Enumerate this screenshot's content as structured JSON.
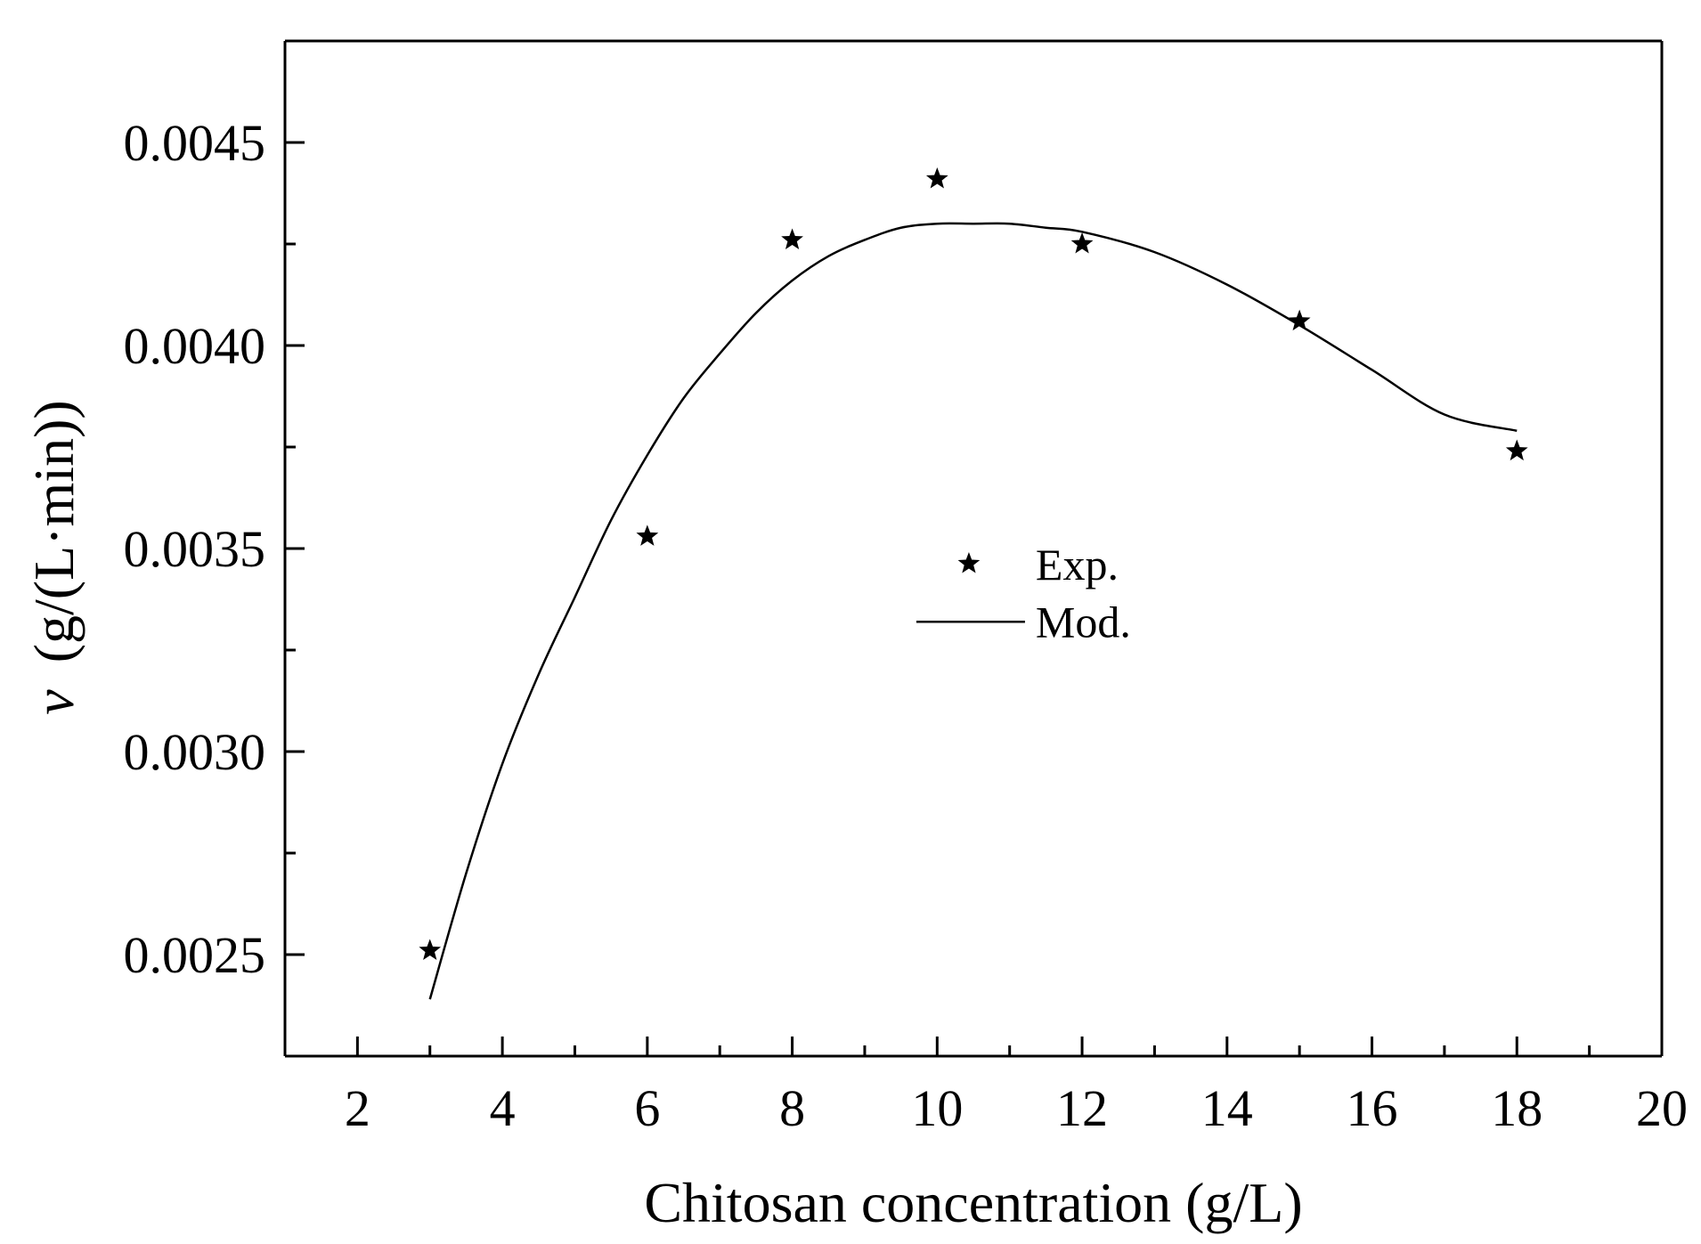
{
  "chart_data": {
    "type": "scatter",
    "xlabel": "Chitosan concentration (g/L)",
    "ylabel": {
      "symbol": "v",
      "unit": "(g/(L·min))"
    },
    "xlim": [
      1,
      20
    ],
    "ylim": [
      0.00225,
      0.00475
    ],
    "x_ticks": [
      2,
      4,
      6,
      8,
      10,
      12,
      14,
      16,
      18,
      20
    ],
    "x_tick_labels": [
      "2",
      "4",
      "6",
      "8",
      "10",
      "12",
      "14",
      "16",
      "18",
      "20"
    ],
    "x_minor_ticks": [
      3,
      5,
      7,
      9,
      11,
      13,
      15,
      17,
      19
    ],
    "y_ticks": [
      0.0025,
      0.003,
      0.0035,
      0.004,
      0.0045
    ],
    "y_tick_labels": [
      "0.0025",
      "0.0030",
      "0.0035",
      "0.0040",
      "0.0045"
    ],
    "y_minor_ticks": [
      0.00275,
      0.00325,
      0.00375,
      0.00425
    ],
    "grid": false,
    "legend_position": "center",
    "series": [
      {
        "name": "Exp.",
        "kind": "scatter",
        "marker": "star",
        "color": "#000000",
        "x": [
          3,
          6,
          8,
          10,
          12,
          15,
          18
        ],
        "y": [
          0.00251,
          0.00353,
          0.00426,
          0.00441,
          0.00425,
          0.00406,
          0.00374
        ]
      },
      {
        "name": "Mod.",
        "kind": "line",
        "color": "#000000",
        "x": [
          3,
          3.5,
          4,
          4.5,
          5,
          5.5,
          6,
          6.5,
          7,
          7.5,
          8,
          8.5,
          9,
          9.5,
          10,
          10.5,
          11,
          11.5,
          12,
          13,
          14,
          15,
          16,
          17,
          18
        ],
        "y": [
          0.00239,
          0.0027,
          0.00297,
          0.00319,
          0.00338,
          0.00357,
          0.00373,
          0.00387,
          0.00398,
          0.00408,
          0.00416,
          0.00422,
          0.00426,
          0.00429,
          0.0043,
          0.0043,
          0.0043,
          0.00429,
          0.00428,
          0.00423,
          0.00415,
          0.00405,
          0.00394,
          0.00383,
          0.00379
        ]
      }
    ]
  }
}
